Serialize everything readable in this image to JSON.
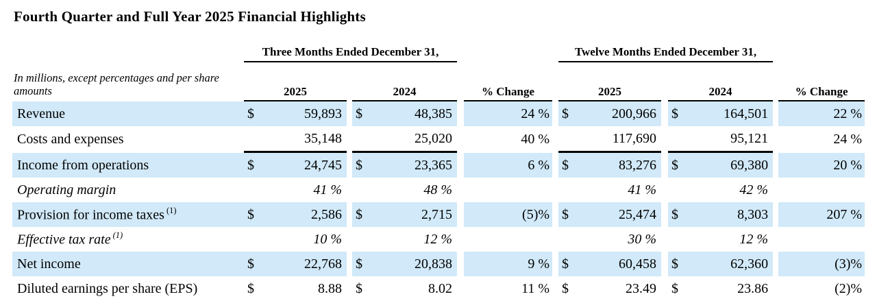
{
  "title": "Fourth Quarter and Full Year 2025 Financial Highlights",
  "colors": {
    "row_highlight": "#d1e9f8",
    "rule_line": "#000000",
    "text": "#000000"
  },
  "table": {
    "note": "In millions, except percentages and per share amounts",
    "group_headers": [
      "Three Months Ended December 31,",
      "Twelve Months Ended December 31,"
    ],
    "column_headers": [
      "2025",
      "2024",
      "% Change"
    ],
    "rows": [
      {
        "label": "Revenue",
        "sup": "",
        "classes": "hl",
        "cells": [
          "$",
          "59,893",
          "$",
          "48,385",
          "24 %",
          "$",
          "200,966",
          "$",
          "164,501",
          "22 %"
        ]
      },
      {
        "label": "Costs and expenses",
        "sup": "",
        "classes": "rule",
        "cells": [
          "",
          "35,148",
          "",
          "25,020",
          "40 %",
          "",
          "117,690",
          "",
          "95,121",
          "24 %"
        ]
      },
      {
        "label": "Income from operations",
        "sup": "",
        "classes": "hl",
        "cells": [
          "$",
          "24,745",
          "$",
          "23,365",
          "6 %",
          "$",
          "83,276",
          "$",
          "69,380",
          "20 %"
        ]
      },
      {
        "label": "Operating margin",
        "sup": "",
        "classes": "it",
        "cells": [
          "",
          "41 %",
          "",
          "48 %",
          "",
          "",
          "41 %",
          "",
          "42 %",
          ""
        ]
      },
      {
        "label": "Provision for income taxes",
        "sup": "(1)",
        "classes": "hl",
        "cells": [
          "$",
          "2,586",
          "$",
          "2,715",
          "(5)%",
          "$",
          "25,474",
          "$",
          "8,303",
          "207 %"
        ]
      },
      {
        "label": "Effective tax rate",
        "sup": "(1)",
        "classes": "it",
        "cells": [
          "",
          "10 %",
          "",
          "12 %",
          "",
          "",
          "30 %",
          "",
          "12 %",
          ""
        ]
      },
      {
        "label": "Net income",
        "sup": "",
        "classes": "hl",
        "cells": [
          "$",
          "22,768",
          "$",
          "20,838",
          "9 %",
          "$",
          "60,458",
          "$",
          "62,360",
          "(3)%"
        ]
      },
      {
        "label": "Diluted earnings per share (EPS)",
        "sup": "",
        "classes": "",
        "cells": [
          "$",
          "8.88",
          "$",
          "8.02",
          "11 %",
          "$",
          "23.49",
          "$",
          "23.86",
          "(2)%"
        ]
      }
    ]
  }
}
